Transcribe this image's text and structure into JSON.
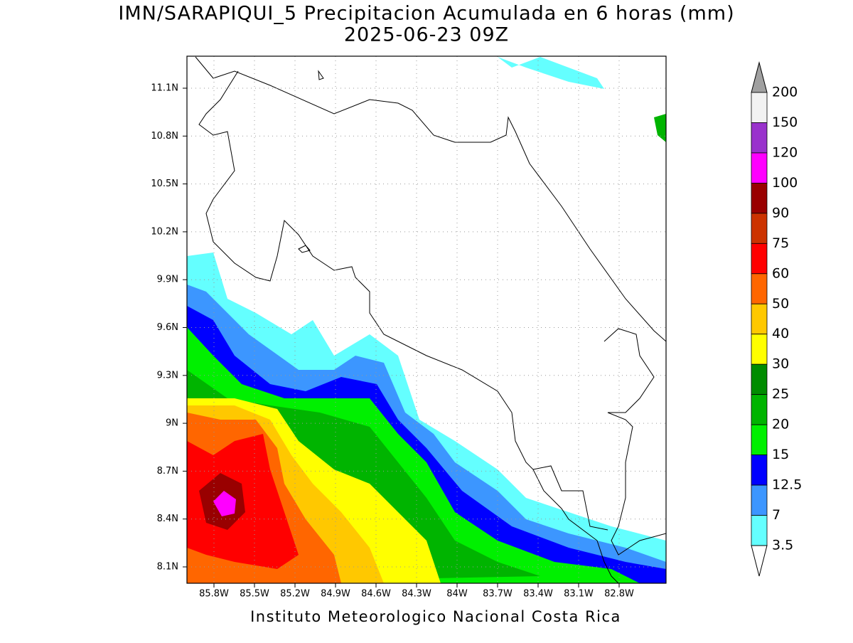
{
  "title": "IMN/SARAPIQUI_5 Precipitacion Acumulada en 6 horas (mm)",
  "subtitle": "2025-06-23 09Z",
  "x_ticks": [
    "85.8W",
    "85.5W",
    "85.2W",
    "84.9W",
    "84.6W",
    "84.3W",
    "84W",
    "83.7W",
    "83.4W",
    "83.1W",
    "82.8W"
  ],
  "y_ticks": [
    "11.1N",
    "10.8N",
    "10.5N",
    "10.2N",
    "9.9N",
    "9.6N",
    "9.3N",
    "9N",
    "8.7N",
    "8.4N",
    "8.1N"
  ],
  "colorbar": {
    "labels": [
      "200",
      "150",
      "120",
      "100",
      "90",
      "75",
      "60",
      "50",
      "40",
      "30",
      "25",
      "20",
      "15",
      "12.5",
      "7",
      "3.5"
    ],
    "colors": [
      "#f2f2f2",
      "#9932cc",
      "#ff00ff",
      "#990000",
      "#cc3300",
      "#ff0000",
      "#ff6600",
      "#ffc800",
      "#ffff00",
      "#008c00",
      "#00b400",
      "#00f000",
      "#0000ff",
      "#3c96ff",
      "#64ffff"
    ]
  },
  "footer": "Instituto Meteorologico Nacional Costa Rica"
}
